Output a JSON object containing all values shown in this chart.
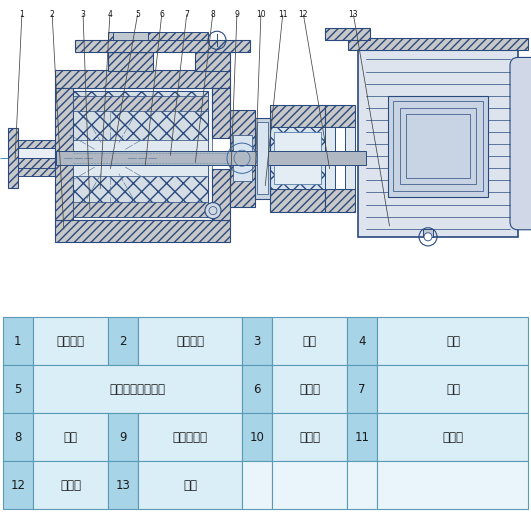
{
  "table_rows": [
    [
      "1",
      "进口法兰",
      "2",
      "泵体衬套",
      "3",
      "静环",
      "4",
      "动环"
    ],
    [
      "5",
      "叶轮、内磁钢总成",
      "6",
      "密封圈",
      "7",
      "轴承"
    ],
    [
      "8",
      "泵轴",
      "9",
      "外磁钢总成",
      "10",
      "止推环",
      "11",
      "隔离套"
    ],
    [
      "12",
      "联接架",
      "13",
      "电机"
    ]
  ],
  "num_labels": [
    "1",
    "2",
    "3",
    "4",
    "5",
    "6",
    "7",
    "8",
    "9",
    "10",
    "11",
    "12",
    "13"
  ],
  "lc": "#2a4a7f",
  "lc2": "#3a6a9f",
  "hatch_fc": "#c8c8c8",
  "pump_fc": "#e8eef4",
  "motor_fc": "#dde4ee",
  "shaft_fc": "#b0b8c4",
  "magnet_fc": "#d0d8e0",
  "num_bg": "#a8d4e8",
  "text_bg": "#daeef8",
  "empty_bg": "#eaf5fb",
  "border_c": "#5a9ab5",
  "centerline_c": "#4090c0",
  "bg": "#ffffff"
}
